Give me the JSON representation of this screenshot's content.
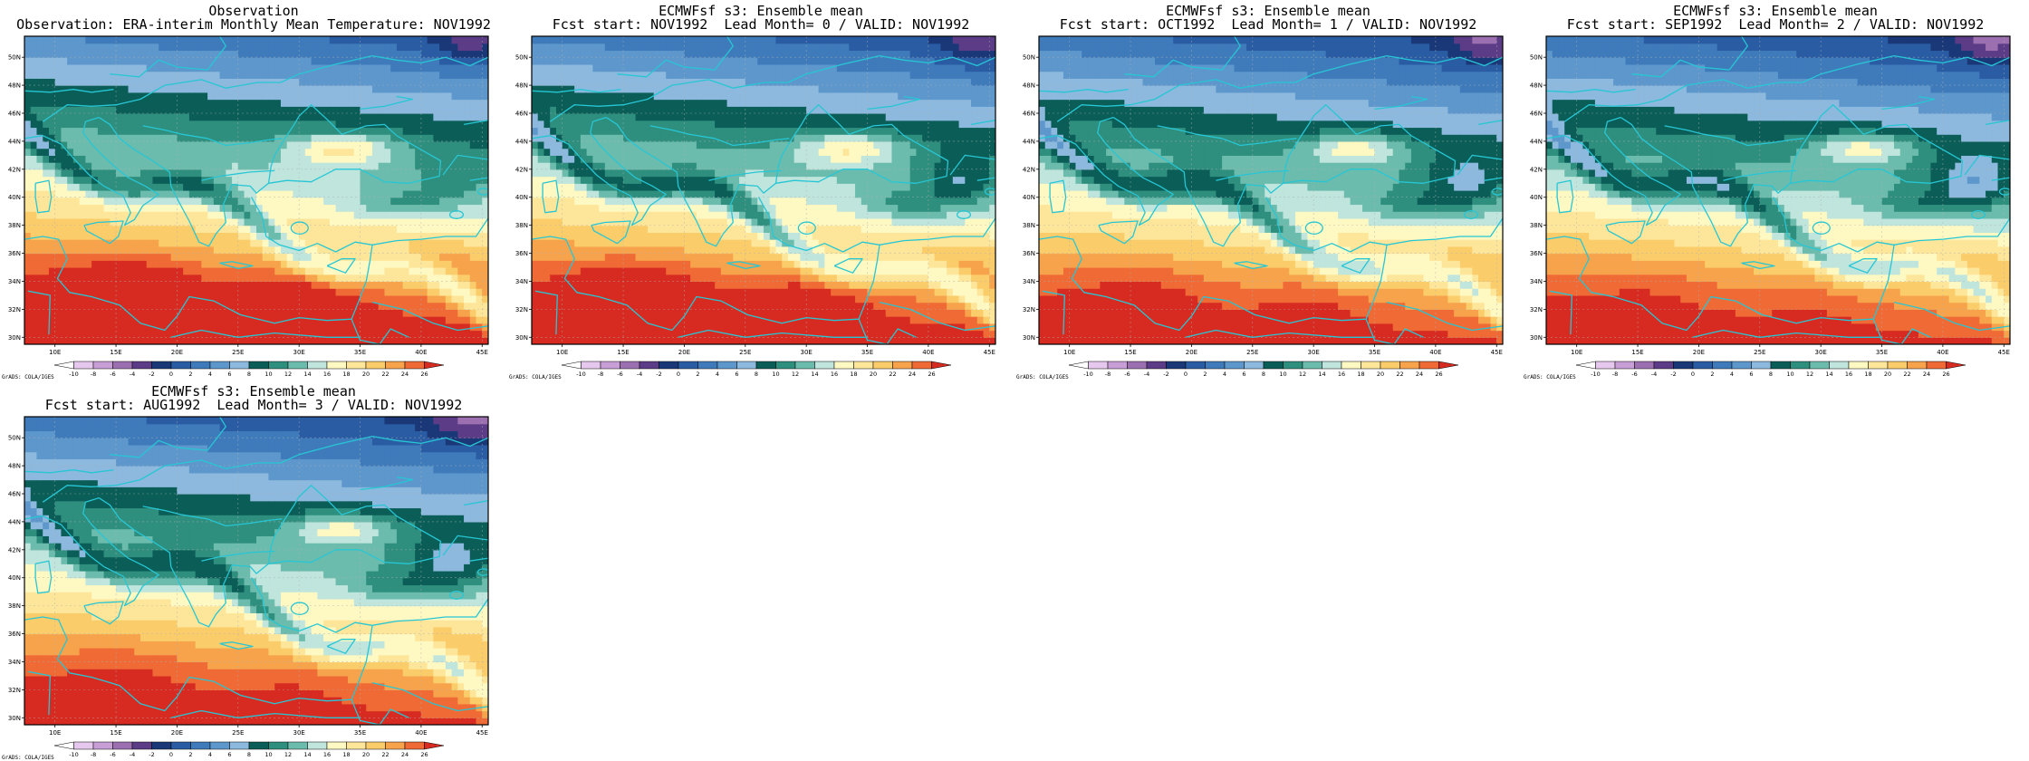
{
  "figure": {
    "panels": [
      {
        "title_line1": "Observation",
        "title_line2": "Observation: ERA-interim Monthly Mean Temperature: NOV1992",
        "field": "obs"
      },
      {
        "title_line1": "ECMWFsf s3: Ensemble mean",
        "title_line2": "Fcst start: NOV1992  Lead Month= 0 / VALID: NOV1992",
        "field": "lead0"
      },
      {
        "title_line1": "ECMWFsf s3: Ensemble mean",
        "title_line2": "Fcst start: OCT1992  Lead Month= 1 / VALID: NOV1992",
        "field": "lead1"
      },
      {
        "title_line1": "ECMWFsf s3: Ensemble mean",
        "title_line2": "Fcst start: SEP1992  Lead Month= 2 / VALID: NOV1992",
        "field": "lead2"
      },
      {
        "title_line1": "ECMWFsf s3: Ensemble mean",
        "title_line2": "Fcst start: AUG1992  Lead Month= 3 / VALID: NOV1992",
        "field": "lead3"
      }
    ],
    "credit": "GrADS: COLA/IGES",
    "lat_ticks": [
      "30N",
      "32N",
      "34N",
      "36N",
      "38N",
      "40N",
      "42N",
      "44N",
      "46N",
      "48N",
      "50N"
    ],
    "lon_ticks": [
      "10E",
      "15E",
      "20E",
      "25E",
      "30E",
      "35E",
      "40E",
      "45E"
    ],
    "colorbar": {
      "levels": [
        "-10",
        "-8",
        "-6",
        "-4",
        "-2",
        "0",
        "2",
        "4",
        "6",
        "8",
        "10",
        "12",
        "14",
        "16",
        "18",
        "20",
        "22",
        "24",
        "26"
      ],
      "colors": [
        "#ffffff",
        "#e6c8ee",
        "#c89ed6",
        "#9c70b0",
        "#5c3c86",
        "#1a3878",
        "#2a5ca4",
        "#3f7bbb",
        "#5d97cc",
        "#8cb9dd",
        "#0b5e57",
        "#2f8f7e",
        "#6cbcae",
        "#bfe5dd",
        "#fef8c2",
        "#fde69a",
        "#fbcd6a",
        "#f7a34c",
        "#ef6a35",
        "#d72b22"
      ]
    }
  }
}
